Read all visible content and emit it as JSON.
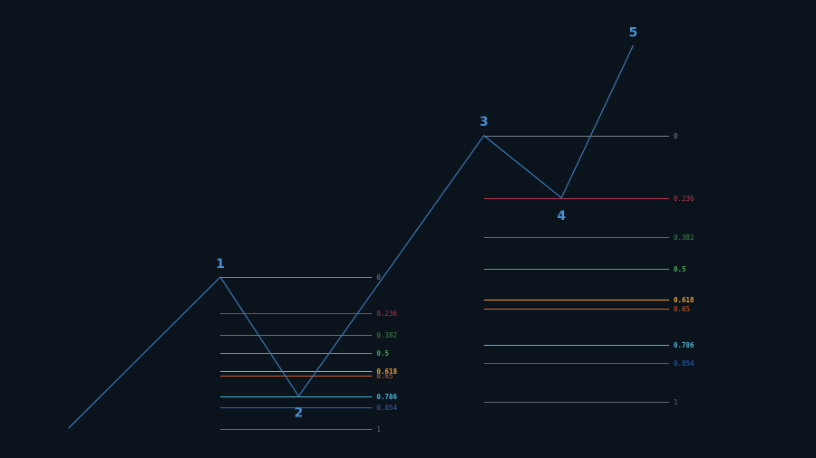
{
  "chart_data": {
    "type": "line",
    "title": "",
    "xlabel": "",
    "ylabel": "",
    "grid": false,
    "xlim": [
      0,
      100
    ],
    "ylim": [
      0,
      100
    ],
    "series": [
      {
        "color": "#3d7ab8",
        "points": [
          {
            "x": 8.4,
            "y": 6.5
          },
          {
            "x": 27.0,
            "y": 39.5
          },
          {
            "x": 36.6,
            "y": 13.5
          },
          {
            "x": 59.3,
            "y": 70.4
          },
          {
            "x": 68.8,
            "y": 56.8
          },
          {
            "x": 77.6,
            "y": 90.1
          }
        ]
      }
    ],
    "wave_labels": [
      {
        "text": "1",
        "x": 27.0,
        "y": 42.5
      },
      {
        "text": "2",
        "x": 36.6,
        "y": 10.0
      },
      {
        "text": "3",
        "x": 59.3,
        "y": 73.5
      },
      {
        "text": "4",
        "x": 68.8,
        "y": 53.0
      },
      {
        "text": "5",
        "x": 77.6,
        "y": 93.0
      }
    ],
    "fib_retracements": [
      {
        "x_start": 27.0,
        "x_end": 45.6,
        "high": 39.5,
        "low": 6.3,
        "levels": [
          {
            "label": "0",
            "ratio": 0,
            "color": "#7b838c"
          },
          {
            "label": "0.236",
            "ratio": 0.236,
            "color": "#b53653"
          },
          {
            "label": "0.382",
            "ratio": 0.382,
            "color": "#3c8f4e"
          },
          {
            "label": "0.5",
            "ratio": 0.5,
            "color": "#4caf50"
          },
          {
            "label": "0.618",
            "ratio": 0.618,
            "color": "#f0a030"
          },
          {
            "label": "0.65",
            "ratio": 0.65,
            "color": "#d9622b"
          },
          {
            "label": "0.786",
            "ratio": 0.786,
            "color": "#4fb6d6"
          },
          {
            "label": "0.854",
            "ratio": 0.854,
            "color": "#2f66c0"
          },
          {
            "label": "1",
            "ratio": 1,
            "color": "#5f6770"
          }
        ]
      },
      {
        "x_start": 59.3,
        "x_end": 82.0,
        "high": 70.4,
        "low": 12.3,
        "levels": [
          {
            "label": "0",
            "ratio": 0,
            "color": "#7b838c"
          },
          {
            "label": "0.236",
            "ratio": 0.236,
            "color": "#b53653"
          },
          {
            "label": "0.382",
            "ratio": 0.382,
            "color": "#3c8f4e"
          },
          {
            "label": "0.5",
            "ratio": 0.5,
            "color": "#4caf50"
          },
          {
            "label": "0.618",
            "ratio": 0.618,
            "color": "#f0a030"
          },
          {
            "label": "0.65",
            "ratio": 0.65,
            "color": "#d9622b"
          },
          {
            "label": "0.786",
            "ratio": 0.786,
            "color": "#4fb6d6"
          },
          {
            "label": "0.854",
            "ratio": 0.854,
            "color": "#2f66c0"
          },
          {
            "label": "1",
            "ratio": 1,
            "color": "#5f6770"
          }
        ]
      }
    ],
    "colors": {
      "background": "#0b131c",
      "wave_line": "#3d7ab8",
      "wave_label": "#4a90d0"
    }
  }
}
